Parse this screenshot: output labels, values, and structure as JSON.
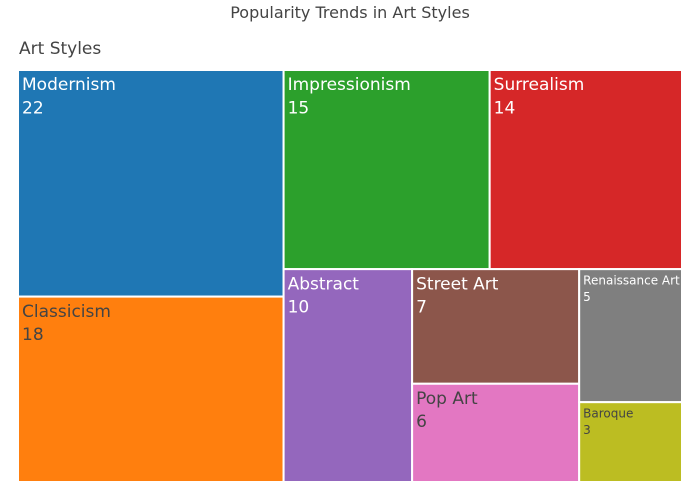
{
  "chart_data": {
    "type": "treemap",
    "title": "Popularity Trends in Art Styles",
    "root": "Art Styles",
    "items": [
      {
        "name": "Modernism",
        "value": 22,
        "color": "#1f77b4",
        "text_color": "#ffffff"
      },
      {
        "name": "Classicism",
        "value": 18,
        "color": "#ff7f0e",
        "text_color": "#444444"
      },
      {
        "name": "Impressionism",
        "value": 15,
        "color": "#2ca02c",
        "text_color": "#ffffff"
      },
      {
        "name": "Surrealism",
        "value": 14,
        "color": "#d62728",
        "text_color": "#ffffff"
      },
      {
        "name": "Abstract",
        "value": 10,
        "color": "#9467bd",
        "text_color": "#ffffff"
      },
      {
        "name": "Street Art",
        "value": 7,
        "color": "#8c564b",
        "text_color": "#ffffff"
      },
      {
        "name": "Pop Art",
        "value": 6,
        "color": "#e377c2",
        "text_color": "#444444"
      },
      {
        "name": "Renaissance Art",
        "value": 5,
        "color": "#7f7f7f",
        "text_color": "#ffffff"
      },
      {
        "name": "Baroque",
        "value": 3,
        "color": "#bcbd22",
        "text_color": "#444444"
      }
    ]
  }
}
